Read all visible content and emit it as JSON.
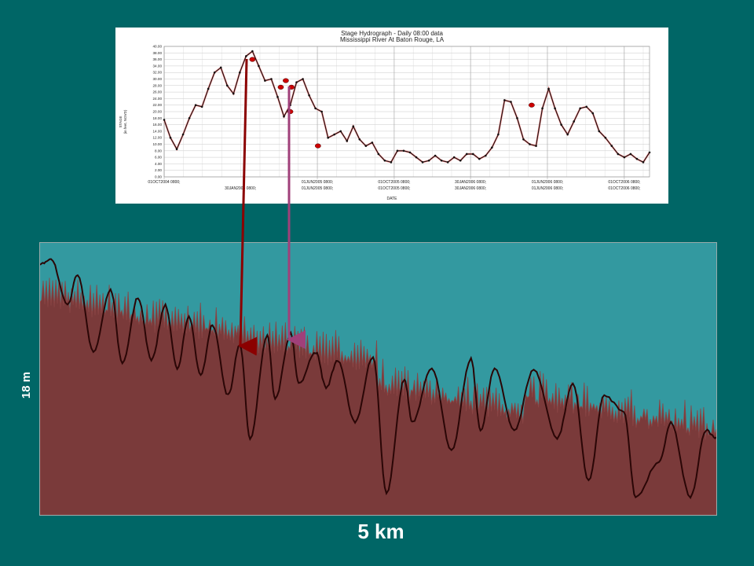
{
  "hydrograph": {
    "title_line1": "Stage Hydrograph - Daily 08:00 data",
    "title_line2": "Mississippi River At Baton Rouge, LA",
    "ylabel_line1": "STAGE",
    "ylabel_line2": "(in feet, NGVD)",
    "xlabel": "DATE",
    "colors": {
      "line": "#111111",
      "marker": "#cc0000",
      "highlight": "#ff8888"
    },
    "chart_data": {
      "type": "line",
      "ylim": [
        0,
        40
      ],
      "xlim": [
        0,
        770
      ],
      "grid": true,
      "yticks": [
        "0.00",
        "2.00",
        "4.00",
        "6.00",
        "8.00",
        "10.00",
        "12.00",
        "14.00",
        "16.00",
        "18.00",
        "20.00",
        "22.00",
        "24.00",
        "26.00",
        "28.00",
        "30.00",
        "32.00",
        "34.00",
        "36.00",
        "38.00",
        "40.00"
      ],
      "xticks_top": [
        {
          "x": 0,
          "label": "01OCT2004 0800;"
        },
        {
          "x": 243,
          "label": "01JUN2005 0800;"
        },
        {
          "x": 365,
          "label": "01OCT2005 0800;"
        },
        {
          "x": 486,
          "label": "30JAN2006 0800;"
        },
        {
          "x": 608,
          "label": "01JUN2006 0800;"
        },
        {
          "x": 730,
          "label": "01OCT2006 0800;"
        }
      ],
      "xticks_bottom": [
        {
          "x": 121,
          "label": "30JAN2005 0800;"
        },
        {
          "x": 243,
          "label": "01JUN2005 0800;"
        },
        {
          "x": 365,
          "label": "01OCT2005 0800;"
        },
        {
          "x": 486,
          "label": "30JAN2006 0800;"
        },
        {
          "x": 608,
          "label": "01JUN2006 0800;"
        },
        {
          "x": 730,
          "label": "01OCT2006 0800;"
        }
      ],
      "x": [
        0,
        10,
        20,
        30,
        40,
        50,
        60,
        70,
        80,
        90,
        100,
        110,
        120,
        130,
        140,
        150,
        160,
        170,
        180,
        190,
        200,
        210,
        220,
        230,
        240,
        250,
        260,
        270,
        280,
        290,
        300,
        310,
        320,
        330,
        340,
        350,
        360,
        370,
        380,
        390,
        400,
        410,
        420,
        430,
        440,
        450,
        460,
        470,
        480,
        490,
        500,
        510,
        520,
        530,
        540,
        550,
        560,
        570,
        580,
        590,
        600,
        610,
        620,
        630,
        640,
        650,
        660,
        670,
        680,
        690,
        700,
        710,
        720,
        730,
        740,
        750,
        760,
        770
      ],
      "y": [
        17.5,
        12,
        8.5,
        13,
        18,
        22,
        21.5,
        27,
        32,
        33.5,
        28,
        25.5,
        32,
        37,
        38.5,
        34,
        29.5,
        30,
        24.5,
        18.5,
        22,
        29,
        30,
        25,
        21,
        20,
        12,
        13,
        14,
        11,
        15.5,
        11.5,
        9.5,
        10.5,
        7,
        5,
        4.5,
        8,
        8,
        7.5,
        6,
        4.5,
        5,
        6.5,
        5,
        4.5,
        6,
        5,
        7,
        7,
        5.5,
        6.5,
        9,
        13,
        23.5,
        23,
        18,
        11.5,
        10,
        9.5,
        21,
        27,
        21,
        16,
        13,
        17,
        21,
        21.5,
        19.5,
        14,
        12,
        9.5,
        7,
        6,
        7,
        5.5,
        4.5,
        7.5
      ],
      "markers": [
        {
          "x": 140,
          "y": 36
        },
        {
          "x": 185,
          "y": 27.5
        },
        {
          "x": 193,
          "y": 29.5
        },
        {
          "x": 202,
          "y": 27.5
        },
        {
          "x": 200,
          "y": 20
        },
        {
          "x": 244,
          "y": 9.5
        },
        {
          "x": 583,
          "y": 22
        }
      ]
    }
  },
  "profile": {
    "scale_vertical": "18 m",
    "scale_horizontal": "5 km",
    "colors": {
      "water": "#3399a0",
      "bed": "#7a3a3a",
      "bed_line": "#2a0606",
      "arrow1": "#8b0000",
      "arrow2": "#a0407a"
    }
  }
}
